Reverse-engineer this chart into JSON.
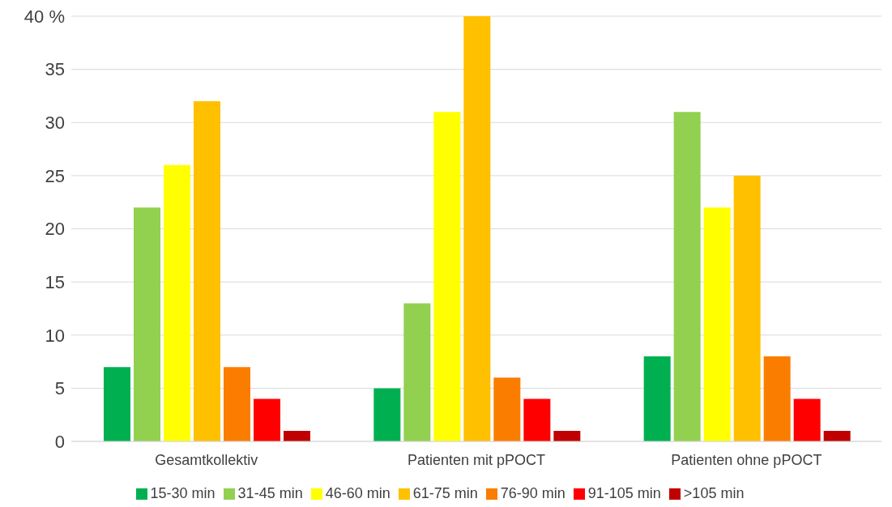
{
  "chart_data": {
    "type": "bar",
    "categories": [
      "Gesamtkollektiv",
      "Patienten mit pPOCT",
      "Patienten ohne pPOCT"
    ],
    "series": [
      {
        "name": "15-30 min",
        "color": "#00b050",
        "values": [
          7,
          5,
          8
        ]
      },
      {
        "name": "31-45 min",
        "color": "#92d050",
        "values": [
          22,
          13,
          31
        ]
      },
      {
        "name": "46-60 min",
        "color": "#ffff00",
        "values": [
          26,
          31,
          22
        ]
      },
      {
        "name": "61-75 min",
        "color": "#ffc000",
        "values": [
          32,
          40,
          25
        ]
      },
      {
        "name": "76-90 min",
        "color": "#fa7d00",
        "values": [
          7,
          6,
          8
        ]
      },
      {
        "name": "91-105 min",
        "color": "#ff0000",
        "values": [
          4,
          4,
          4
        ]
      },
      {
        "name": ">105 min",
        "color": "#c00000",
        "values": [
          1,
          1,
          1
        ]
      }
    ],
    "ylim": [
      0,
      40
    ],
    "yticks": [
      0,
      5,
      10,
      15,
      20,
      25,
      30,
      35,
      {
        "value": 40,
        "label": "40 %"
      }
    ],
    "grid": "y",
    "legend": "bottom"
  }
}
